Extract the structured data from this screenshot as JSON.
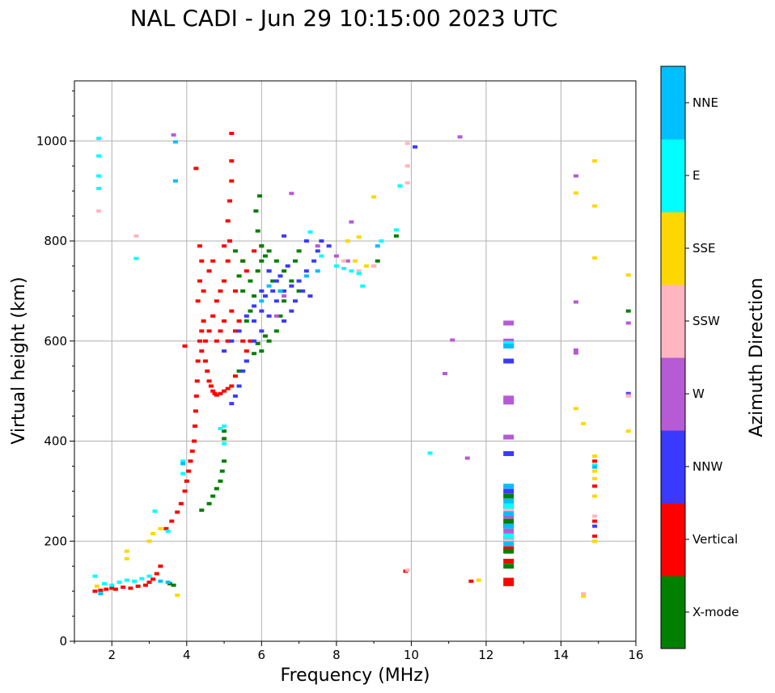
{
  "chart_data": {
    "type": "scatter",
    "title": "NAL CADI - Jun 29 10:15:00 2023 UTC",
    "xlabel": "Frequency (MHz)",
    "ylabel": "Virtual height (km)",
    "xlim": [
      1,
      16
    ],
    "ylim": [
      0,
      1120
    ],
    "xticks": [
      2,
      4,
      6,
      8,
      10,
      12,
      14,
      16
    ],
    "yticks": [
      0,
      200,
      400,
      600,
      800,
      1000
    ],
    "grid": true,
    "colorbar": {
      "label": "Azimuth Direction",
      "categories": [
        "X-mode",
        "Vertical",
        "NNW",
        "W",
        "SSW",
        "SSE",
        "E",
        "NNE"
      ],
      "colors": [
        "#008000",
        "#ff0000",
        "#3a3aff",
        "#b65ad6",
        "#ffb6c1",
        "#ffd700",
        "#00ffff",
        "#00bfff"
      ]
    },
    "series": [
      {
        "name": "Vertical",
        "points": [
          [
            1.55,
            100
          ],
          [
            1.7,
            102
          ],
          [
            1.85,
            104
          ],
          [
            2.0,
            106
          ],
          [
            2.1,
            104
          ],
          [
            2.3,
            108
          ],
          [
            2.5,
            106
          ],
          [
            2.7,
            110
          ],
          [
            2.9,
            112
          ],
          [
            3.0,
            118
          ],
          [
            3.1,
            124
          ],
          [
            3.2,
            135
          ],
          [
            3.3,
            150
          ],
          [
            3.45,
            225
          ],
          [
            3.6,
            240
          ],
          [
            3.75,
            258
          ],
          [
            3.85,
            275
          ],
          [
            3.95,
            300
          ],
          [
            4.0,
            320
          ],
          [
            4.05,
            340
          ],
          [
            4.1,
            360
          ],
          [
            4.15,
            380
          ],
          [
            4.2,
            400
          ],
          [
            4.22,
            430
          ],
          [
            4.24,
            460
          ],
          [
            4.26,
            490
          ],
          [
            4.28,
            520
          ],
          [
            4.3,
            560
          ],
          [
            4.35,
            600
          ],
          [
            4.4,
            620
          ],
          [
            4.45,
            640
          ],
          [
            4.5,
            560
          ],
          [
            4.55,
            540
          ],
          [
            4.6,
            520
          ],
          [
            4.65,
            510
          ],
          [
            4.7,
            500
          ],
          [
            4.75,
            495
          ],
          [
            4.8,
            492
          ],
          [
            4.9,
            495
          ],
          [
            5.0,
            500
          ],
          [
            5.1,
            505
          ],
          [
            5.2,
            510
          ],
          [
            5.3,
            530
          ],
          [
            4.4,
            580
          ],
          [
            4.5,
            600
          ],
          [
            4.6,
            620
          ],
          [
            4.7,
            650
          ],
          [
            4.8,
            680
          ],
          [
            4.9,
            700
          ],
          [
            5.0,
            720
          ],
          [
            5.1,
            760
          ],
          [
            5.15,
            800
          ],
          [
            5.1,
            840
          ],
          [
            5.15,
            880
          ],
          [
            5.2,
            920
          ],
          [
            5.2,
            960
          ],
          [
            5.2,
            1015
          ],
          [
            4.3,
            680
          ],
          [
            4.35,
            720
          ],
          [
            4.4,
            760
          ],
          [
            4.35,
            790
          ],
          [
            4.45,
            700
          ],
          [
            4.6,
            740
          ],
          [
            4.7,
            760
          ],
          [
            5.0,
            790
          ],
          [
            5.3,
            620
          ],
          [
            5.4,
            640
          ],
          [
            5.5,
            600
          ],
          [
            5.6,
            580
          ],
          [
            5.7,
            600
          ],
          [
            3.95,
            590
          ],
          [
            4.25,
            945
          ],
          [
            4.8,
            600
          ],
          [
            4.9,
            620
          ],
          [
            5.0,
            640
          ],
          [
            5.1,
            600
          ],
          [
            5.2,
            660
          ],
          [
            5.3,
            700
          ],
          [
            5.5,
            760
          ],
          [
            5.6,
            740
          ],
          [
            5.8,
            780
          ],
          [
            6.0,
            790
          ],
          [
            12.6,
            115
          ],
          [
            12.6,
            122
          ],
          [
            12.6,
            160
          ],
          [
            12.6,
            185
          ],
          [
            12.6,
            205
          ],
          [
            12.6,
            230
          ],
          [
            12.6,
            270
          ],
          [
            9.85,
            140
          ],
          [
            11.6,
            120
          ],
          [
            14.9,
            210
          ],
          [
            14.9,
            240
          ],
          [
            14.9,
            360
          ],
          [
            14.9,
            310
          ]
        ]
      },
      {
        "name": "X-mode",
        "points": [
          [
            3.65,
            112
          ],
          [
            3.55,
            115
          ],
          [
            4.4,
            262
          ],
          [
            4.6,
            275
          ],
          [
            4.7,
            290
          ],
          [
            4.8,
            305
          ],
          [
            4.9,
            320
          ],
          [
            4.95,
            340
          ],
          [
            5.0,
            360
          ],
          [
            5.0,
            420
          ],
          [
            5.0,
            405
          ],
          [
            5.4,
            540
          ],
          [
            5.6,
            560
          ],
          [
            5.8,
            575
          ],
          [
            6.0,
            580
          ],
          [
            6.2,
            600
          ],
          [
            6.4,
            620
          ],
          [
            6.5,
            650
          ],
          [
            6.6,
            680
          ],
          [
            6.5,
            700
          ],
          [
            6.3,
            720
          ],
          [
            6.2,
            740
          ],
          [
            6.1,
            770
          ],
          [
            6.0,
            790
          ],
          [
            5.9,
            820
          ],
          [
            5.85,
            860
          ],
          [
            5.95,
            890
          ],
          [
            5.6,
            640
          ],
          [
            5.7,
            660
          ],
          [
            5.8,
            690
          ],
          [
            5.5,
            700
          ],
          [
            5.7,
            720
          ],
          [
            5.9,
            740
          ],
          [
            6.0,
            760
          ],
          [
            6.2,
            780
          ],
          [
            6.4,
            760
          ],
          [
            6.6,
            740
          ],
          [
            6.8,
            720
          ],
          [
            7.0,
            700
          ],
          [
            5.3,
            780
          ],
          [
            5.5,
            760
          ],
          [
            5.4,
            730
          ],
          [
            6.9,
            760
          ],
          [
            7.0,
            780
          ],
          [
            9.1,
            760
          ],
          [
            9.0,
            750
          ],
          [
            9.6,
            810
          ],
          [
            15.8,
            660
          ],
          [
            12.6,
            150
          ],
          [
            12.6,
            180
          ],
          [
            12.6,
            240
          ],
          [
            12.6,
            290
          ],
          [
            5.9,
            595
          ],
          [
            6.1,
            610
          ]
        ]
      },
      {
        "name": "NNW",
        "points": [
          [
            5.2,
            475
          ],
          [
            5.3,
            490
          ],
          [
            5.4,
            510
          ],
          [
            5.5,
            540
          ],
          [
            5.6,
            560
          ],
          [
            5.8,
            600
          ],
          [
            6.0,
            620
          ],
          [
            6.2,
            650
          ],
          [
            6.4,
            680
          ],
          [
            6.6,
            700
          ],
          [
            6.8,
            710
          ],
          [
            7.0,
            720
          ],
          [
            7.2,
            740
          ],
          [
            7.4,
            760
          ],
          [
            7.5,
            780
          ],
          [
            5.8,
            640
          ],
          [
            6.0,
            660
          ],
          [
            6.1,
            690
          ],
          [
            6.3,
            700
          ],
          [
            6.5,
            730
          ],
          [
            6.7,
            750
          ],
          [
            6.9,
            680
          ],
          [
            7.1,
            700
          ],
          [
            7.3,
            690
          ],
          [
            6.8,
            660
          ],
          [
            6.6,
            640
          ],
          [
            6.4,
            720
          ],
          [
            6.2,
            740
          ],
          [
            6.0,
            700
          ],
          [
            5.0,
            580
          ],
          [
            5.2,
            600
          ],
          [
            5.4,
            620
          ],
          [
            5.6,
            650
          ],
          [
            5.8,
            670
          ],
          [
            7.6,
            800
          ],
          [
            7.8,
            790
          ],
          [
            7.2,
            800
          ],
          [
            6.6,
            810
          ],
          [
            10.1,
            988
          ],
          [
            12.6,
            375
          ],
          [
            12.6,
            560
          ],
          [
            14.9,
            230
          ],
          [
            15.8,
            495
          ],
          [
            12.6,
            300
          ]
        ]
      },
      {
        "name": "W",
        "points": [
          [
            3.65,
            1012
          ],
          [
            6.8,
            895
          ],
          [
            8.4,
            838
          ],
          [
            11.3,
            1008
          ],
          [
            11.1,
            602
          ],
          [
            10.9,
            535
          ],
          [
            11.5,
            366
          ],
          [
            12.6,
            636
          ],
          [
            12.6,
            600
          ],
          [
            12.6,
            486
          ],
          [
            12.6,
            478
          ],
          [
            12.6,
            408
          ],
          [
            14.4,
            930
          ],
          [
            14.4,
            678
          ],
          [
            14.4,
            582
          ],
          [
            14.4,
            576
          ],
          [
            15.8,
            636
          ],
          [
            15.8,
            492
          ],
          [
            12.6,
            220
          ],
          [
            12.6,
            250
          ],
          [
            7.5,
            790
          ],
          [
            8.0,
            770
          ],
          [
            8.3,
            760
          ],
          [
            6.6,
            690
          ],
          [
            6.4,
            650
          ]
        ]
      },
      {
        "name": "SSW",
        "points": [
          [
            1.65,
            860
          ],
          [
            2.65,
            810
          ],
          [
            8.2,
            760
          ],
          [
            8.6,
            740
          ],
          [
            9.0,
            750
          ],
          [
            9.9,
            995
          ],
          [
            9.9,
            950
          ],
          [
            9.9,
            916
          ],
          [
            9.9,
            142
          ],
          [
            14.6,
            95
          ],
          [
            12.6,
            200
          ],
          [
            12.6,
            260
          ],
          [
            14.9,
            250
          ],
          [
            15.8,
            490
          ]
        ]
      },
      {
        "name": "SSE",
        "points": [
          [
            1.6,
            110
          ],
          [
            2.4,
            180
          ],
          [
            2.4,
            165
          ],
          [
            3.0,
            200
          ],
          [
            3.1,
            215
          ],
          [
            3.3,
            225
          ],
          [
            3.75,
            92
          ],
          [
            8.3,
            800
          ],
          [
            8.6,
            808
          ],
          [
            9.0,
            888
          ],
          [
            8.8,
            750
          ],
          [
            8.5,
            760
          ],
          [
            14.4,
            896
          ],
          [
            14.4,
            465
          ],
          [
            14.6,
            435
          ],
          [
            14.9,
            960
          ],
          [
            14.9,
            870
          ],
          [
            14.9,
            766
          ],
          [
            14.9,
            370
          ],
          [
            14.9,
            340
          ],
          [
            14.9,
            325
          ],
          [
            14.9,
            290
          ],
          [
            14.9,
            200
          ],
          [
            14.6,
            90
          ],
          [
            11.8,
            122
          ],
          [
            15.8,
            732
          ],
          [
            15.8,
            420
          ]
        ]
      },
      {
        "name": "E",
        "points": [
          [
            1.65,
            1005
          ],
          [
            1.65,
            970
          ],
          [
            1.65,
            930
          ],
          [
            1.65,
            905
          ],
          [
            2.65,
            765
          ],
          [
            1.55,
            130
          ],
          [
            1.8,
            115
          ],
          [
            2.0,
            112
          ],
          [
            2.2,
            118
          ],
          [
            2.4,
            122
          ],
          [
            2.6,
            120
          ],
          [
            2.8,
            125
          ],
          [
            3.0,
            130
          ],
          [
            3.15,
            260
          ],
          [
            3.5,
            220
          ],
          [
            3.9,
            360
          ],
          [
            3.9,
            335
          ],
          [
            4.9,
            425
          ],
          [
            5.0,
            430
          ],
          [
            5.0,
            395
          ],
          [
            7.3,
            818
          ],
          [
            7.6,
            770
          ],
          [
            8.0,
            750
          ],
          [
            8.2,
            745
          ],
          [
            8.4,
            740
          ],
          [
            8.6,
            735
          ],
          [
            8.7,
            710
          ],
          [
            9.2,
            800
          ],
          [
            9.6,
            822
          ],
          [
            9.7,
            910
          ],
          [
            10.5,
            376
          ],
          [
            12.6,
            270
          ],
          [
            12.6,
            210
          ],
          [
            14.9,
            352
          ],
          [
            12.6,
            595
          ]
        ]
      },
      {
        "name": "NNE",
        "points": [
          [
            3.9,
            355
          ],
          [
            3.7,
            998
          ],
          [
            3.7,
            920
          ],
          [
            3.3,
            120
          ],
          [
            3.5,
            118
          ],
          [
            6.0,
            680
          ],
          [
            6.2,
            710
          ],
          [
            6.5,
            700
          ],
          [
            7.2,
            730
          ],
          [
            7.5,
            740
          ],
          [
            9.1,
            790
          ],
          [
            12.6,
            590
          ],
          [
            12.6,
            310
          ],
          [
            12.6,
            280
          ],
          [
            12.6,
            255
          ],
          [
            12.6,
            230
          ],
          [
            12.6,
            195
          ],
          [
            14.9,
            348
          ],
          [
            1.7,
            95
          ]
        ]
      }
    ]
  }
}
